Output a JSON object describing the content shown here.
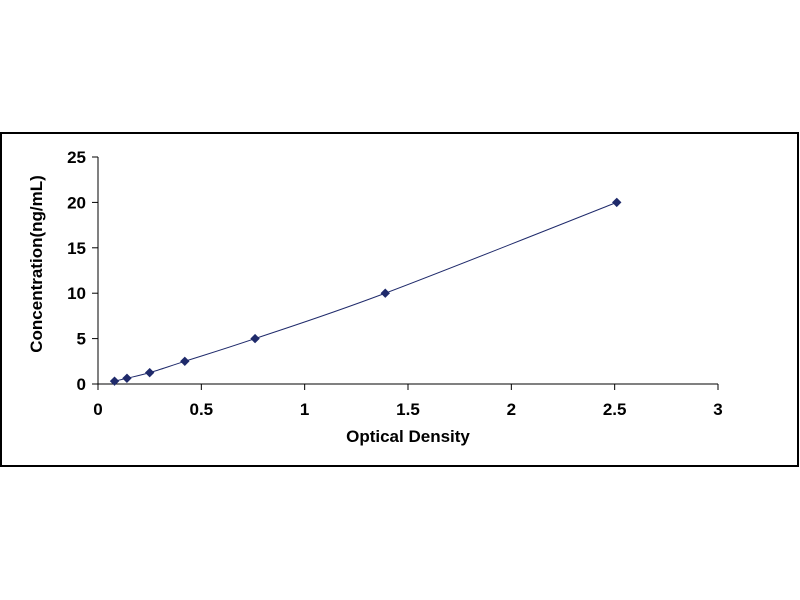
{
  "chart_data": {
    "type": "scatter",
    "title": "",
    "xlabel": "Optical Density",
    "ylabel": "Concentration(ng/mL)",
    "xlim": [
      0,
      3
    ],
    "ylim": [
      0,
      25
    ],
    "x_ticks": [
      0,
      0.5,
      1,
      1.5,
      2,
      2.5,
      3
    ],
    "x_tick_labels": [
      "0",
      "0.5",
      "1",
      "1.5",
      "2",
      "2.5",
      "3"
    ],
    "y_ticks": [
      0,
      5,
      10,
      15,
      20,
      25
    ],
    "y_tick_labels": [
      "0",
      "5",
      "10",
      "15",
      "20",
      "25"
    ],
    "grid": false,
    "legend": "none",
    "trendline": true,
    "series": [
      {
        "marker": "diamond",
        "color": "#1f2a6b",
        "x": [
          0.08,
          0.14,
          0.25,
          0.42,
          0.76,
          1.39,
          2.51
        ],
        "y": [
          0.31,
          0.63,
          1.25,
          2.5,
          5,
          10,
          20
        ]
      }
    ]
  }
}
